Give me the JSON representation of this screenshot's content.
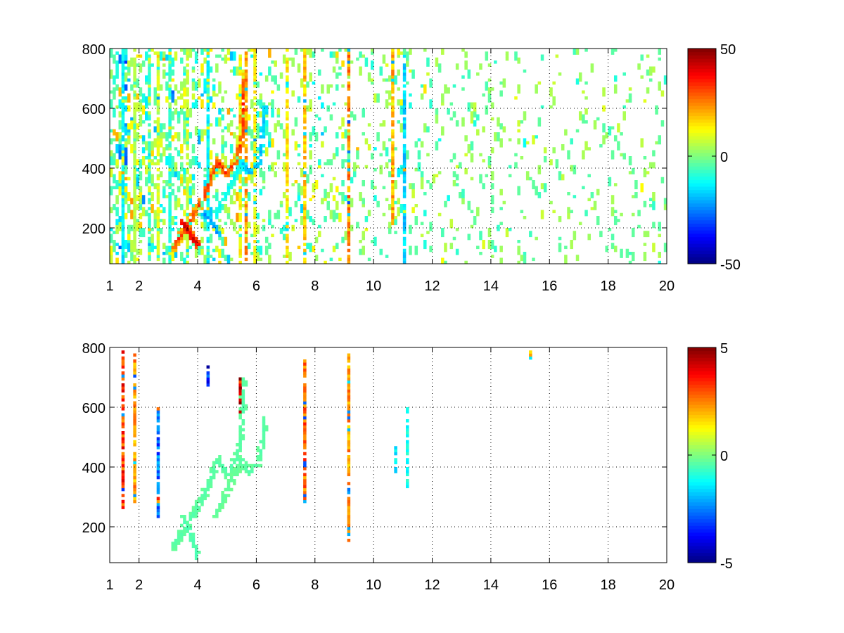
{
  "chart_data": [
    {
      "type": "heatmap",
      "title": "",
      "xlabel": "",
      "ylabel": "",
      "xlim": [
        1,
        20
      ],
      "ylim": [
        80,
        800
      ],
      "x_ticks": [
        1,
        2,
        4,
        6,
        8,
        10,
        12,
        14,
        16,
        18,
        20
      ],
      "y_ticks": [
        200,
        400,
        600,
        800
      ],
      "grid": true,
      "colormap": "jet",
      "colorbar": {
        "range": [
          -50,
          50
        ],
        "ticks": [
          50,
          0,
          -50
        ]
      },
      "background_cells": {
        "density_by_x": [
          [
            1,
            0.55
          ],
          [
            3,
            0.45
          ],
          [
            4.5,
            0.32
          ],
          [
            6.5,
            0.22
          ],
          [
            8,
            0.18
          ],
          [
            11.5,
            0.16
          ],
          [
            13,
            0.12
          ],
          [
            20,
            0.1
          ]
        ],
        "value_sd": [
          [
            1,
            11
          ],
          [
            5,
            9
          ],
          [
            8,
            7
          ],
          [
            12,
            5
          ],
          [
            20,
            4
          ]
        ]
      },
      "ridges": [
        {
          "points": [
            [
              3.2,
              140
            ],
            [
              3.6,
              200
            ],
            [
              3.9,
              250
            ],
            [
              4.2,
              300
            ],
            [
              4.5,
              380
            ],
            [
              4.7,
              420
            ],
            [
              5.0,
              380
            ],
            [
              5.3,
              420
            ],
            [
              5.5,
              500
            ],
            [
              5.6,
              700
            ]
          ],
          "value": 30,
          "width_x": 0.12,
          "width_y": 20
        },
        {
          "points": [
            [
              3.5,
              220
            ],
            [
              3.8,
              170
            ],
            [
              4.0,
              150
            ]
          ],
          "value": 42,
          "width_x": 0.1,
          "width_y": 22
        },
        {
          "points": [
            [
              4.2,
              250
            ],
            [
              4.6,
              200
            ],
            [
              4.7,
              180
            ]
          ],
          "value": -22,
          "width_x": 0.1,
          "width_y": 14
        },
        {
          "points": [
            [
              4.6,
              240
            ],
            [
              5.0,
              320
            ],
            [
              5.3,
              380
            ],
            [
              5.5,
              420
            ]
          ],
          "value": -12,
          "width_x": 0.1,
          "width_y": 16
        },
        {
          "points": [
            [
              5.5,
              420
            ],
            [
              5.8,
              380
            ],
            [
              6.1,
              420
            ],
            [
              6.3,
              600
            ]
          ],
          "value": -18,
          "width_x": 0.12,
          "width_y": 16
        }
      ],
      "streaks": [
        {
          "x": 1.4,
          "y": [
            80,
            800
          ],
          "value": -15
        },
        {
          "x": 1.8,
          "y": [
            80,
            800
          ],
          "value": 6
        },
        {
          "x": 2.3,
          "y": [
            80,
            800
          ],
          "value": -8
        },
        {
          "x": 2.6,
          "y": [
            80,
            800
          ],
          "value": 10
        },
        {
          "x": 3.0,
          "y": [
            80,
            800
          ],
          "value": -10
        },
        {
          "x": 3.6,
          "y": [
            80,
            800
          ],
          "value": 8
        },
        {
          "x": 4.3,
          "y": [
            80,
            800
          ],
          "value": -14
        },
        {
          "x": 5.4,
          "y": [
            80,
            800
          ],
          "value": 14
        },
        {
          "x": 5.6,
          "y": [
            80,
            800
          ],
          "value": 25
        },
        {
          "x": 5.9,
          "y": [
            80,
            800
          ],
          "value": 14
        },
        {
          "x": 7.0,
          "y": [
            80,
            800
          ],
          "value": 16
        },
        {
          "x": 7.6,
          "y": [
            80,
            800
          ],
          "value": 20
        },
        {
          "x": 9.05,
          "y": [
            80,
            800
          ],
          "value": 26
        },
        {
          "x": 10.6,
          "y": [
            200,
            800
          ],
          "value": 22
        },
        {
          "x": 11.0,
          "y": [
            80,
            800
          ],
          "value": -18
        }
      ]
    },
    {
      "type": "heatmap",
      "title": "",
      "xlabel": "",
      "ylabel": "",
      "xlim": [
        1,
        20
      ],
      "ylim": [
        80,
        800
      ],
      "x_ticks": [
        1,
        2,
        4,
        6,
        8,
        10,
        12,
        14,
        16,
        18,
        20
      ],
      "y_ticks": [
        200,
        400,
        600,
        800
      ],
      "grid": true,
      "colormap": "jet",
      "colorbar": {
        "range": [
          -5,
          5
        ],
        "ticks": [
          5,
          0,
          -5
        ]
      },
      "background_cells": {
        "density_by_x": [
          [
            1,
            0
          ],
          [
            20,
            0
          ]
        ],
        "value_sd": [
          [
            1,
            0
          ],
          [
            20,
            0
          ]
        ]
      },
      "ridges": [
        {
          "points": [
            [
              3.2,
              140
            ],
            [
              3.6,
              200
            ],
            [
              3.9,
              250
            ],
            [
              4.2,
              300
            ],
            [
              4.5,
              380
            ],
            [
              4.7,
              420
            ],
            [
              5.0,
              380
            ],
            [
              5.3,
              420
            ],
            [
              5.5,
              500
            ],
            [
              5.6,
              700
            ]
          ],
          "value": -0.4,
          "width_x": 0.12,
          "width_y": 22
        },
        {
          "points": [
            [
              3.5,
              220
            ],
            [
              3.8,
              170
            ],
            [
              4.0,
              100
            ]
          ],
          "value": -0.5,
          "width_x": 0.12,
          "width_y": 22
        },
        {
          "points": [
            [
              4.6,
              240
            ],
            [
              5.0,
              320
            ],
            [
              5.3,
              380
            ],
            [
              5.5,
              420
            ]
          ],
          "value": -0.3,
          "width_x": 0.1,
          "width_y": 16
        },
        {
          "points": [
            [
              5.5,
              420
            ],
            [
              5.8,
              380
            ],
            [
              6.1,
              420
            ],
            [
              6.3,
              560
            ]
          ],
          "value": -0.4,
          "width_x": 0.12,
          "width_y": 16
        }
      ],
      "streaks": [
        {
          "x": 1.45,
          "y": [
            260,
            790
          ],
          "value": 3.5
        },
        {
          "x": 1.8,
          "y": [
            280,
            780
          ],
          "value": 2.5
        },
        {
          "x": 2.6,
          "y": [
            230,
            600
          ],
          "value": -3
        },
        {
          "x": 4.3,
          "y": [
            660,
            750
          ],
          "value": -4
        },
        {
          "x": 5.4,
          "y": [
            580,
            700
          ],
          "value": 4.5
        },
        {
          "x": 7.6,
          "y": [
            280,
            770
          ],
          "value": 3
        },
        {
          "x": 9.05,
          "y": [
            150,
            790
          ],
          "value": 2.5
        },
        {
          "x": 10.65,
          "y": [
            380,
            470
          ],
          "value": -1.5
        },
        {
          "x": 11.05,
          "y": [
            330,
            600
          ],
          "value": -1.2
        },
        {
          "x": 15.3,
          "y": [
            760,
            790
          ],
          "value": 2
        }
      ]
    }
  ]
}
